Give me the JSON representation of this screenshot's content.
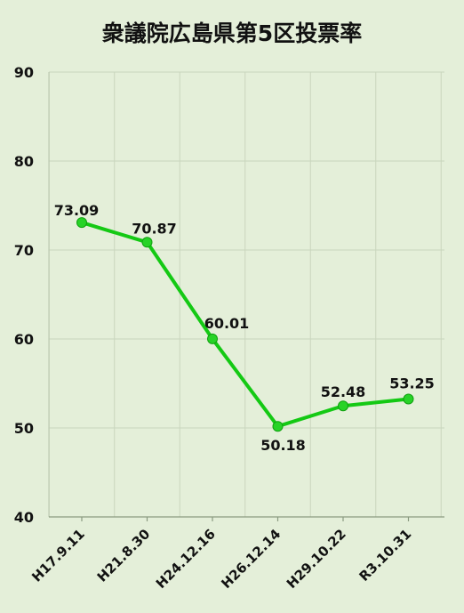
{
  "chart_data": {
    "type": "line",
    "title": "衆議院広島県第5区投票率",
    "categories": [
      "H17.9.11",
      "H21.8.30",
      "H24.12.16",
      "H26.12.14",
      "H29.10.22",
      "R3.10.31"
    ],
    "values": [
      73.09,
      70.87,
      60.01,
      50.18,
      52.48,
      53.25
    ],
    "data_labels": [
      "73.09",
      "70.87",
      "60.01",
      "50.18",
      "52.48",
      "53.25"
    ],
    "ylim": [
      40,
      90
    ],
    "yticks": [
      "40",
      "50",
      "60",
      "70",
      "80",
      "90"
    ],
    "grid": true,
    "line_color": "#14c914",
    "marker_color": "#27d327",
    "background": "#e4efd9"
  }
}
